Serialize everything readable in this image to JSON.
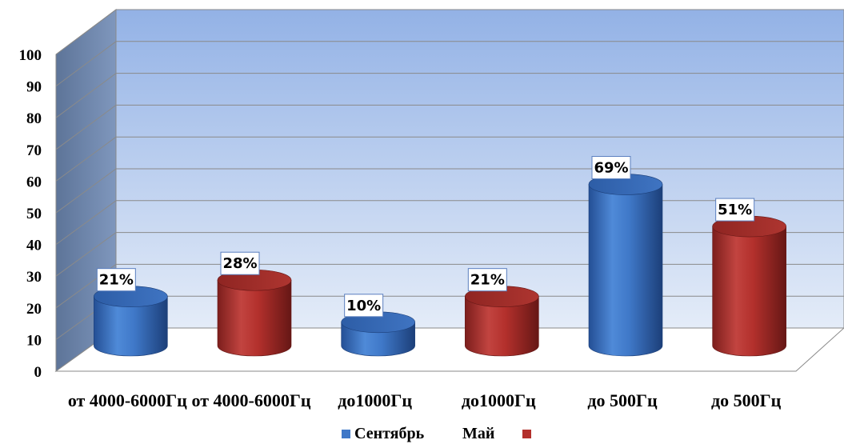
{
  "chart_data": {
    "type": "bar",
    "categories": [
      "от 4000-6000Гц",
      "от 4000-6000Гц",
      "до1000Гц",
      "до1000Гц",
      "до 500Гц",
      "до 500Гц"
    ],
    "values": [
      21,
      28,
      10,
      21,
      69,
      51
    ],
    "value_labels": [
      "21%",
      "28%",
      "10%",
      "21%",
      "69%",
      "51%"
    ],
    "bar_series": [
      "Сентябрь",
      "Май",
      "Сентябрь",
      "Май",
      "Сентябрь",
      "Май"
    ],
    "series": [
      {
        "name": "Сентябрь",
        "color": "#3f78c8"
      },
      {
        "name": "Май",
        "color": "#b3302c"
      }
    ],
    "y_ticks": [
      "0",
      "10",
      "20",
      "30",
      "40",
      "50",
      "60",
      "70",
      "80",
      "90",
      "100"
    ],
    "ylim": [
      0,
      100
    ],
    "grid": true,
    "legend_position": "bottom"
  }
}
